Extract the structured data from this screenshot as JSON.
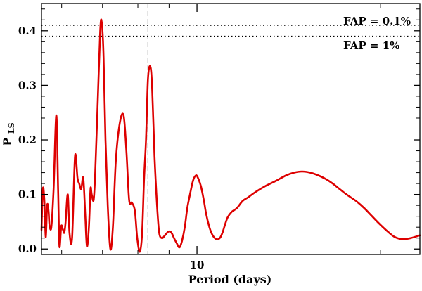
{
  "chart_data": {
    "type": "line",
    "x_scale": "log",
    "xlabel": "Period (days)",
    "ylabel_main": "P",
    "ylabel_sub": "LS",
    "xlim": [
      5.56,
      23.2
    ],
    "ylim": [
      -0.01,
      0.45
    ],
    "x_ticks": [
      {
        "value": 10,
        "label": "10"
      }
    ],
    "y_ticks": [
      {
        "value": 0.0,
        "label": "0.0"
      },
      {
        "value": 0.1,
        "label": "0.1"
      },
      {
        "value": 0.2,
        "label": "0.2"
      },
      {
        "value": 0.3,
        "label": "0.3"
      },
      {
        "value": 0.4,
        "label": "0.4"
      }
    ],
    "grid": false,
    "line_color": "#dd0000",
    "thresholds": [
      {
        "label": "FAP = 0.1%",
        "value": 0.41
      },
      {
        "label": "FAP = 1%",
        "value": 0.39
      }
    ],
    "marker_period": 8.31,
    "series": [
      {
        "x": [
          5.56,
          5.59,
          5.62,
          5.65,
          5.68,
          5.71,
          5.73,
          5.77,
          5.82,
          5.88,
          5.92,
          5.95,
          5.99,
          6.03,
          6.06,
          6.09,
          6.14,
          6.18,
          6.24,
          6.31,
          6.37,
          6.41,
          6.46,
          6.51,
          6.56,
          6.6,
          6.65,
          6.69,
          6.72,
          6.77,
          6.81,
          6.87,
          6.94,
          6.98,
          7.03,
          7.08,
          7.14,
          7.21,
          7.28,
          7.36,
          7.47,
          7.58,
          7.66,
          7.74,
          7.82,
          7.91,
          7.98,
          8.06,
          8.13,
          8.19,
          8.25,
          8.31,
          8.38,
          8.44,
          8.52,
          8.6,
          8.67,
          8.76,
          8.86,
          8.98,
          9.08,
          9.17,
          9.27,
          9.36,
          9.45,
          9.55,
          9.64,
          9.74,
          9.85,
          9.96,
          10.04,
          10.15,
          10.26,
          10.35,
          10.48,
          10.61,
          10.76,
          10.9,
          11.01,
          11.12,
          11.23,
          11.4,
          11.63,
          11.88,
          12.14,
          12.49,
          12.93,
          13.48,
          14.0,
          14.42,
          14.87,
          15.34,
          15.81,
          16.28,
          16.69,
          17.13,
          17.59,
          18.23,
          18.8,
          19.37,
          19.96,
          20.55,
          21.1,
          21.73,
          22.41,
          23.2
        ],
        "y": [
          0.035,
          0.11,
          0.09,
          0.022,
          0.08,
          0.07,
          0.045,
          0.04,
          0.11,
          0.245,
          0.11,
          0.005,
          0.042,
          0.035,
          0.03,
          0.05,
          0.1,
          0.03,
          0.02,
          0.17,
          0.13,
          0.12,
          0.11,
          0.13,
          0.06,
          0.005,
          0.04,
          0.11,
          0.1,
          0.09,
          0.14,
          0.26,
          0.4,
          0.415,
          0.35,
          0.2,
          0.08,
          0.0,
          0.04,
          0.16,
          0.23,
          0.245,
          0.18,
          0.09,
          0.085,
          0.07,
          0.02,
          -0.005,
          0.03,
          0.13,
          0.2,
          0.31,
          0.335,
          0.3,
          0.17,
          0.08,
          0.03,
          0.02,
          0.025,
          0.032,
          0.03,
          0.02,
          0.01,
          0.003,
          0.015,
          0.04,
          0.075,
          0.1,
          0.125,
          0.135,
          0.13,
          0.115,
          0.09,
          0.065,
          0.04,
          0.025,
          0.018,
          0.02,
          0.03,
          0.045,
          0.058,
          0.068,
          0.075,
          0.088,
          0.095,
          0.105,
          0.115,
          0.125,
          0.135,
          0.14,
          0.142,
          0.14,
          0.135,
          0.128,
          0.12,
          0.11,
          0.1,
          0.088,
          0.075,
          0.06,
          0.045,
          0.032,
          0.022,
          0.018,
          0.02,
          0.025
        ]
      }
    ]
  }
}
